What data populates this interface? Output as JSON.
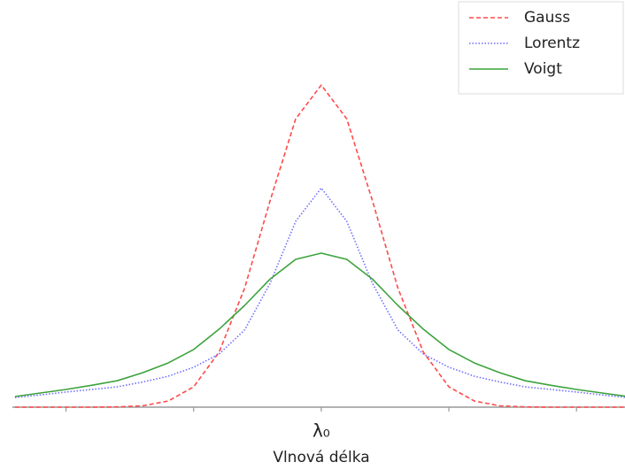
{
  "chart_data": {
    "type": "line",
    "x_label": "Vlnová délka",
    "x": [
      -2.4,
      -2.2,
      -2.0,
      -1.8,
      -1.6,
      -1.4,
      -1.2,
      -1.0,
      -0.8,
      -0.6,
      -0.4,
      -0.2,
      0,
      0.2,
      0.4,
      0.6,
      0.8,
      1.0,
      1.2,
      1.4,
      1.6,
      1.8,
      2.0,
      2.2,
      2.4
    ],
    "series": [
      {
        "name": "Gauss",
        "color": "#ff4a4a",
        "dash": "5,3",
        "values": [
          0,
          0,
          0,
          0.0001,
          0.0009,
          0.004,
          0.019,
          0.063,
          0.171,
          0.37,
          0.642,
          0.895,
          1,
          0.895,
          0.642,
          0.37,
          0.171,
          0.063,
          0.019,
          0.004,
          0.0009,
          0.0001,
          0,
          0,
          0
        ]
      },
      {
        "name": "Lorentz",
        "color": "#6f6fff",
        "dash": "1.5,2",
        "values": [
          0.03,
          0.038,
          0.047,
          0.055,
          0.063,
          0.078,
          0.096,
          0.124,
          0.165,
          0.24,
          0.385,
          0.577,
          0.68,
          0.577,
          0.385,
          0.24,
          0.165,
          0.124,
          0.096,
          0.078,
          0.063,
          0.055,
          0.047,
          0.038,
          0.03
        ]
      },
      {
        "name": "Voigt",
        "color": "#3ca33c",
        "dash": "none",
        "values": [
          0.033,
          0.044,
          0.055,
          0.068,
          0.082,
          0.107,
          0.137,
          0.179,
          0.242,
          0.316,
          0.398,
          0.459,
          0.478,
          0.459,
          0.398,
          0.316,
          0.242,
          0.179,
          0.137,
          0.107,
          0.082,
          0.068,
          0.055,
          0.044,
          0.033
        ]
      }
    ],
    "xlim": [
      -2.42,
      2.38
    ],
    "ylim": [
      0,
      1.264
    ],
    "xticks": [
      {
        "value": -2,
        "label": null
      },
      {
        "value": -1,
        "label": null
      },
      {
        "value": 0,
        "label": "λ₀"
      },
      {
        "value": 1,
        "label": null
      },
      {
        "value": 2,
        "label": null
      }
    ],
    "legend": "upper right"
  }
}
